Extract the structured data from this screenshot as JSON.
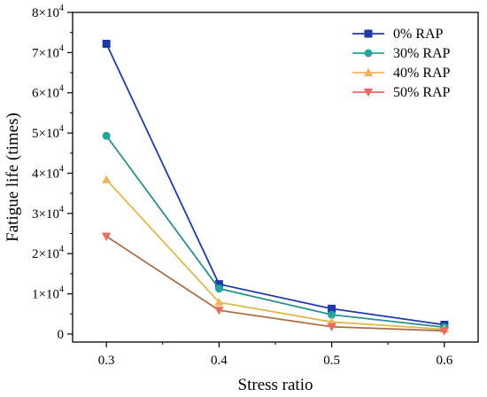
{
  "chart_data": {
    "type": "line",
    "title": "",
    "xlabel": "Stress ratio",
    "ylabel": "Fatigue life (times)",
    "x": [
      0.3,
      0.4,
      0.5,
      0.6
    ],
    "x_tick_labels": [
      "0.3",
      "0.4",
      "0.5",
      "0.6"
    ],
    "xlim": [
      0.27,
      0.63
    ],
    "ylim": [
      -2000,
      80000
    ],
    "y_ticks": [
      {
        "value": 0,
        "mantissa": "0",
        "exponent": ""
      },
      {
        "value": 10000,
        "mantissa": "1×10",
        "exponent": "4"
      },
      {
        "value": 20000,
        "mantissa": "2×10",
        "exponent": "4"
      },
      {
        "value": 30000,
        "mantissa": "3×10",
        "exponent": "4"
      },
      {
        "value": 40000,
        "mantissa": "4×10",
        "exponent": "4"
      },
      {
        "value": 50000,
        "mantissa": "5×10",
        "exponent": "4"
      },
      {
        "value": 60000,
        "mantissa": "6×10",
        "exponent": "4"
      },
      {
        "value": 70000,
        "mantissa": "7×10",
        "exponent": "4"
      },
      {
        "value": 80000,
        "mantissa": "8×10",
        "exponent": "4"
      }
    ],
    "grid": false,
    "legend_position": "top-right",
    "series": [
      {
        "name": "0%   RAP",
        "values": [
          72200,
          12400,
          6300,
          2300
        ],
        "color": "#1f3aa8",
        "line_color": "#1f3aa8",
        "marker": "square"
      },
      {
        "name": "30% RAP",
        "values": [
          49300,
          11300,
          4800,
          1700
        ],
        "color": "#1fa89a",
        "line_color": "#2a8f8f",
        "marker": "circle"
      },
      {
        "name": "40% RAP",
        "values": [
          38400,
          7900,
          3000,
          1200
        ],
        "color": "#f5b25e",
        "line_color": "#e0b84a",
        "marker": "triangle-up"
      },
      {
        "name": "50% RAP",
        "values": [
          24300,
          5900,
          1800,
          800
        ],
        "color": "#ec6a60",
        "line_color": "#a8704a",
        "marker": "triangle-down"
      }
    ]
  }
}
